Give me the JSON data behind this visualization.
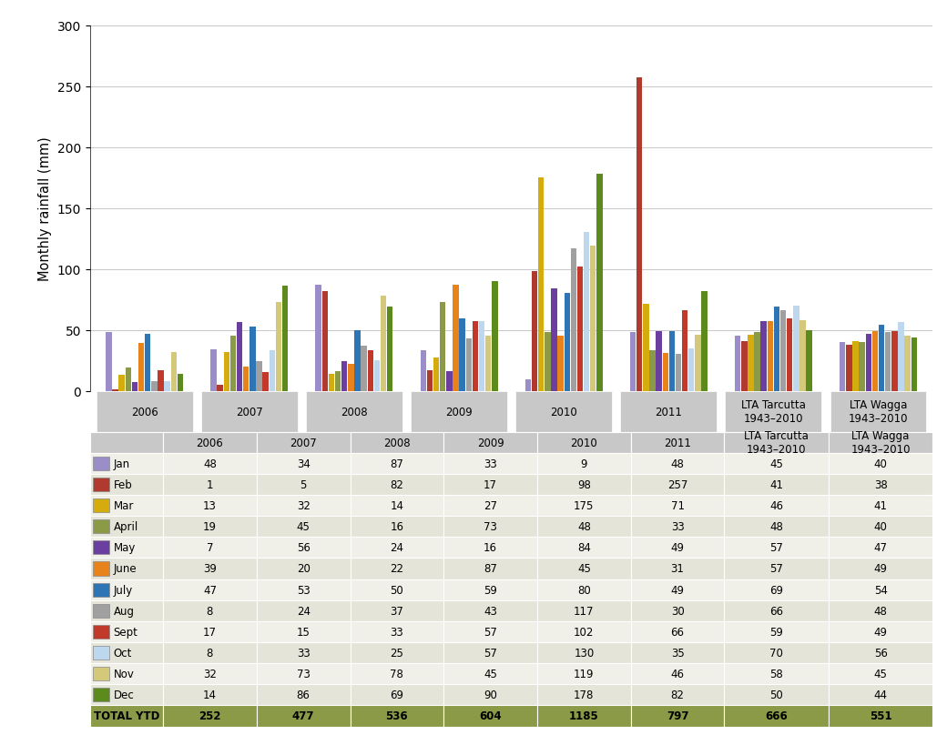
{
  "months": [
    "Jan",
    "Feb",
    "Mar",
    "April",
    "May",
    "June",
    "July",
    "Aug",
    "Sept",
    "Oct",
    "Nov",
    "Dec"
  ],
  "month_colors": [
    "#9B8DC8",
    "#B03A2E",
    "#D4AC0D",
    "#8B9A46",
    "#6B3FA0",
    "#E8821A",
    "#2E75B6",
    "#A0A0A0",
    "#C0392B",
    "#BDD7EE",
    "#D4C87A",
    "#5D8A1C"
  ],
  "groups": [
    "2006",
    "2007",
    "2008",
    "2009",
    "2010",
    "2011",
    "LTA Tarcutta\n1943–2010",
    "LTA Wagga\n1943–2010"
  ],
  "data": {
    "Jan": [
      48,
      34,
      87,
      33,
      9,
      48,
      45,
      40
    ],
    "Feb": [
      1,
      5,
      82,
      17,
      98,
      257,
      41,
      38
    ],
    "Mar": [
      13,
      32,
      14,
      27,
      175,
      71,
      46,
      41
    ],
    "April": [
      19,
      45,
      16,
      73,
      48,
      33,
      48,
      40
    ],
    "May": [
      7,
      56,
      24,
      16,
      84,
      49,
      57,
      47
    ],
    "June": [
      39,
      20,
      22,
      87,
      45,
      31,
      57,
      49
    ],
    "July": [
      47,
      53,
      50,
      59,
      80,
      49,
      69,
      54
    ],
    "Aug": [
      8,
      24,
      37,
      43,
      117,
      30,
      66,
      48
    ],
    "Sept": [
      17,
      15,
      33,
      57,
      102,
      66,
      59,
      49
    ],
    "Oct": [
      8,
      33,
      25,
      57,
      130,
      35,
      70,
      56
    ],
    "Nov": [
      32,
      73,
      78,
      45,
      119,
      46,
      58,
      45
    ],
    "Dec": [
      14,
      86,
      69,
      90,
      178,
      82,
      50,
      44
    ]
  },
  "totals": [
    252,
    477,
    536,
    604,
    1185,
    797,
    666,
    551
  ],
  "ylabel": "Monthly rainfall (mm)",
  "ylim": [
    0,
    300
  ],
  "yticks": [
    0,
    50,
    100,
    150,
    200,
    250,
    300
  ],
  "col_labels": [
    "",
    "2006",
    "2007",
    "2008",
    "2009",
    "2010",
    "2011",
    "LTA Tarcutta\n1943–2010",
    "LTA Wagga\n1943–2010"
  ],
  "table_header_bg": "#C8C8C8",
  "table_row_bg_even": "#F0F0E8",
  "table_row_bg_odd": "#E4E4D8",
  "table_total_bg": "#8B9A46",
  "chart_group_label_bg": "#C8C8C8"
}
